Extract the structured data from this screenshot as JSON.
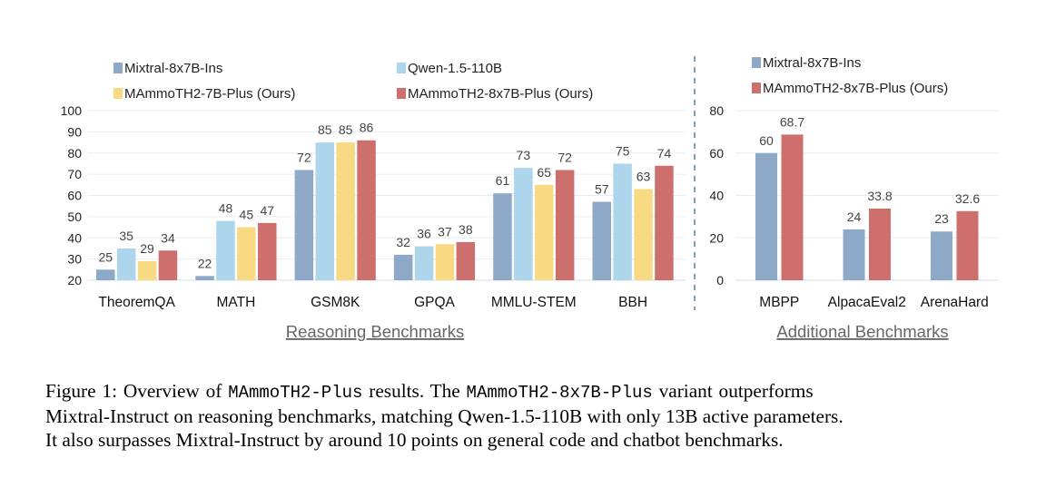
{
  "chart_data": [
    {
      "type": "bar",
      "xlabel": "Reasoning Benchmarks",
      "ylabel": "",
      "ylim": [
        20,
        100
      ],
      "yticks": [
        20,
        30,
        40,
        50,
        60,
        70,
        80,
        90,
        100
      ],
      "grid": true,
      "legend": "top",
      "categories": [
        "TheoremQA",
        "MATH",
        "GSM8K",
        "GPQA",
        "MMLU-STEM",
        "BBH"
      ],
      "series": [
        {
          "name": "Mixtral-8x7B-Ins",
          "color": "#8EA9C8",
          "values": [
            25,
            22,
            72,
            32,
            61,
            57
          ]
        },
        {
          "name": "Qwen-1.5-110B",
          "color": "#ADD5EC",
          "values": [
            35,
            48,
            85,
            36,
            73,
            75
          ]
        },
        {
          "name": "MAmmoTH2-7B-Plus (Ours)",
          "color": "#F8DA82",
          "values": [
            29,
            45,
            85,
            37,
            65,
            63
          ]
        },
        {
          "name": "MAmmoTH2-8x7B-Plus (Ours)",
          "color": "#CD6F6D",
          "values": [
            34,
            47,
            86,
            38,
            72,
            74
          ]
        }
      ]
    },
    {
      "type": "bar",
      "xlabel": "Additional Benchmarks",
      "ylabel": "",
      "ylim": [
        0,
        80
      ],
      "yticks": [
        0,
        20,
        40,
        60,
        80
      ],
      "grid": true,
      "legend": "top",
      "categories": [
        "MBPP",
        "AlpacaEval2",
        "ArenaHard"
      ],
      "series": [
        {
          "name": "Mixtral-8x7B-Ins",
          "color": "#8EA9C8",
          "values": [
            60,
            24,
            23
          ]
        },
        {
          "name": "MAmmoTH2-8x7B-Plus (Ours)",
          "color": "#CD6F6D",
          "values": [
            68.7,
            33.8,
            32.6
          ]
        }
      ]
    }
  ],
  "caption": {
    "l1a": "Figure 1: Overview of ",
    "l1b": "MAmmoTH2-Plus",
    "l1c": " results. The ",
    "l1d": "MAmmoTH2-8x7B-Plus",
    "l1e": " variant outperforms",
    "l2": "Mixtral-Instruct on reasoning benchmarks, matching Qwen-1.5-110B with only 13B active parameters.",
    "l3": "It also surpasses Mixtral-Instruct by around 10 points on general code and chatbot benchmarks."
  }
}
